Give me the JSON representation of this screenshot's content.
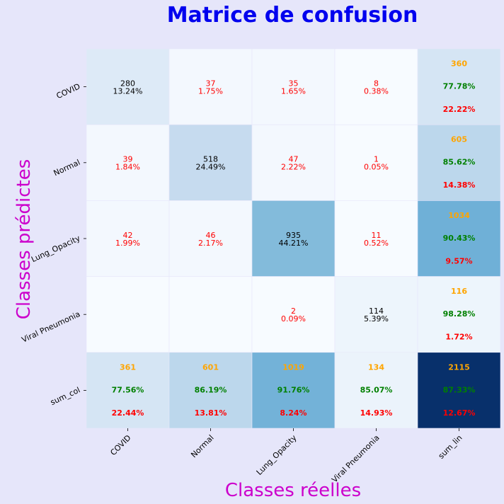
{
  "chart_data": {
    "type": "heatmap",
    "title": "Matrice de confusion",
    "xlabel": "Classes réelles",
    "ylabel": "Classes prédictes",
    "x_categories": [
      "COVID",
      "Normal",
      "Lung_Opacity",
      "Viral Pneumonia",
      "sum_lin"
    ],
    "y_categories": [
      "COVID",
      "Normal",
      "Lung_Opacity",
      "Viral Pneumonia",
      "sum_col"
    ],
    "grid": false,
    "colorbar": false,
    "colors": {
      "title": "#0000ee",
      "axis_label": "#cc00cc",
      "correct": "#000000",
      "error": "#ff0000",
      "count": "#ffa500",
      "recall": "#008000",
      "background": "#e6e6fa"
    },
    "cells": [
      [
        {
          "count": "280",
          "percent": "13.24%",
          "kind": "diag",
          "intensity": 0.13
        },
        {
          "count": "37",
          "percent": "1.75%",
          "kind": "off",
          "intensity": 0.02
        },
        {
          "count": "35",
          "percent": "1.65%",
          "kind": "off",
          "intensity": 0.02
        },
        {
          "count": "8",
          "percent": "0.38%",
          "kind": "off",
          "intensity": 0.0
        },
        {
          "total": "360",
          "good": "77.78%",
          "bad": "22.22%",
          "kind": "sum",
          "intensity": 0.17
        }
      ],
      [
        {
          "count": "39",
          "percent": "1.84%",
          "kind": "off",
          "intensity": 0.02
        },
        {
          "count": "518",
          "percent": "24.49%",
          "kind": "diag",
          "intensity": 0.25
        },
        {
          "count": "47",
          "percent": "2.22%",
          "kind": "off",
          "intensity": 0.02
        },
        {
          "count": "1",
          "percent": "0.05%",
          "kind": "off",
          "intensity": 0.0
        },
        {
          "total": "605",
          "good": "85.62%",
          "bad": "14.38%",
          "kind": "sum",
          "intensity": 0.28
        }
      ],
      [
        {
          "count": "42",
          "percent": "1.99%",
          "kind": "off",
          "intensity": 0.02
        },
        {
          "count": "46",
          "percent": "2.17%",
          "kind": "off",
          "intensity": 0.02
        },
        {
          "count": "935",
          "percent": "44.21%",
          "kind": "diag",
          "intensity": 0.44
        },
        {
          "count": "11",
          "percent": "0.52%",
          "kind": "off",
          "intensity": 0.0
        },
        {
          "total": "1034",
          "good": "90.43%",
          "bad": "9.57%",
          "kind": "sum",
          "intensity": 0.49
        }
      ],
      [
        {
          "count": "",
          "percent": "",
          "kind": "off",
          "intensity": 0.0
        },
        {
          "count": "",
          "percent": "",
          "kind": "off",
          "intensity": 0.0
        },
        {
          "count": "2",
          "percent": "0.09%",
          "kind": "off",
          "intensity": 0.0
        },
        {
          "count": "114",
          "percent": "5.39%",
          "kind": "diag",
          "intensity": 0.05
        },
        {
          "total": "116",
          "good": "98.28%",
          "bad": "1.72%",
          "kind": "sum",
          "intensity": 0.05
        }
      ],
      [
        {
          "total": "361",
          "good": "77.56%",
          "bad": "22.44%",
          "kind": "sum",
          "intensity": 0.17
        },
        {
          "total": "601",
          "good": "86.19%",
          "bad": "13.81%",
          "kind": "sum",
          "intensity": 0.28
        },
        {
          "total": "1019",
          "good": "91.76%",
          "bad": "8.24%",
          "kind": "sum",
          "intensity": 0.48
        },
        {
          "total": "134",
          "good": "85.07%",
          "bad": "14.93%",
          "kind": "sum",
          "intensity": 0.06
        },
        {
          "total": "2115",
          "good": "87.33%",
          "bad": "12.67%",
          "kind": "sum",
          "intensity": 1.0
        }
      ]
    ]
  }
}
